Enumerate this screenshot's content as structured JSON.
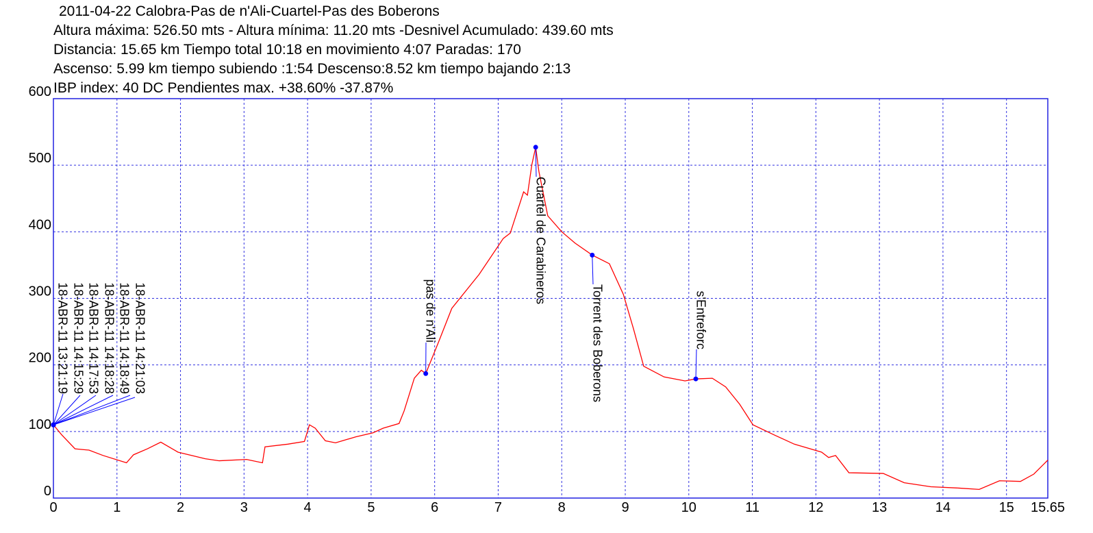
{
  "chart_data": {
    "type": "line",
    "title": "2011-04-22 Calobra-Pas de n'Ali-Cuartel-Pas des Boberons",
    "subtitle_lines": [
      "Altura máxima: 526.50 mts - Altura mínima: 11.20 mts -Desnivel Acumulado: 439.60 mts",
      "Distancia: 15.65 km  Tiempo total 10:18  en movimiento 4:07 Paradas: 170",
      "Ascenso: 5.99 km  tiempo subiendo :1:54  Descenso:8.52 km tiempo bajando 2:13",
      "IBP index: 40 DC Pendientes max. +38.60%  -37.87%"
    ],
    "color": "#ff0000",
    "grid": true,
    "xlim": [
      0,
      15.65
    ],
    "ylim": [
      0,
      600
    ],
    "xticks": [
      0,
      1,
      2,
      3,
      4,
      5,
      6,
      7,
      8,
      9,
      10,
      11,
      12,
      13,
      14,
      15,
      15.65
    ],
    "yticks": [
      0,
      100,
      200,
      300,
      400,
      500,
      600
    ],
    "x": [
      0,
      0.13,
      0.34,
      0.56,
      0.78,
      1.15,
      1.26,
      1.48,
      1.69,
      1.96,
      2.39,
      2.61,
      3.04,
      3.29,
      3.33,
      3.69,
      3.95,
      4.03,
      4.12,
      4.28,
      4.44,
      4.76,
      5.03,
      5.19,
      5.44,
      5.52,
      5.68,
      5.79,
      5.86,
      6.06,
      6.27,
      6.7,
      7.08,
      7.19,
      7.4,
      7.46,
      7.53,
      7.59,
      7.64,
      7.78,
      8.0,
      8.21,
      8.48,
      8.75,
      8.97,
      9.13,
      9.29,
      9.61,
      9.94,
      10.11,
      10.37,
      10.58,
      10.8,
      11.01,
      11.34,
      11.66,
      12.09,
      12.2,
      12.31,
      12.52,
      13.06,
      13.39,
      13.81,
      14.25,
      14.57,
      14.89,
      15.22,
      15.43,
      15.65
    ],
    "values": [
      110,
      95,
      74,
      72,
      64,
      53,
      65,
      74,
      84,
      69,
      59,
      56,
      58,
      53,
      77,
      81,
      85,
      110,
      105,
      86,
      83,
      92,
      98,
      105,
      112,
      131,
      180,
      192,
      187,
      234,
      285,
      336,
      390,
      398,
      460,
      455,
      501,
      527,
      491,
      424,
      400,
      383,
      365,
      352,
      306,
      254,
      198,
      182,
      176,
      179,
      180,
      167,
      141,
      110,
      95,
      81,
      69,
      61,
      64,
      38,
      37,
      23,
      17,
      15,
      13,
      26,
      25,
      36,
      57
    ],
    "waypoints": [
      {
        "label": "18-ABR-11 13:21:19",
        "x": 0,
        "y": 110
      },
      {
        "label": "18-ABR-11 14:15:29",
        "x": 0,
        "y": 110
      },
      {
        "label": "18-ABR-11 14:17:53",
        "x": 0,
        "y": 110
      },
      {
        "label": "18-ABR-11 14:18:28",
        "x": 0,
        "y": 110
      },
      {
        "label": "18-ABR-11 14:18:49",
        "x": 0,
        "y": 110
      },
      {
        "label": "18-ABR-11 14:21:03",
        "x": 0,
        "y": 110
      },
      {
        "label": "pas de n'Ali",
        "x": 5.86,
        "y": 187
      },
      {
        "label": "Cuartel de Carabineros",
        "x": 7.59,
        "y": 527
      },
      {
        "label": "Torrent des Boberons",
        "x": 8.48,
        "y": 365
      },
      {
        "label": "s'Entreforc",
        "x": 10.11,
        "y": 179
      }
    ]
  }
}
